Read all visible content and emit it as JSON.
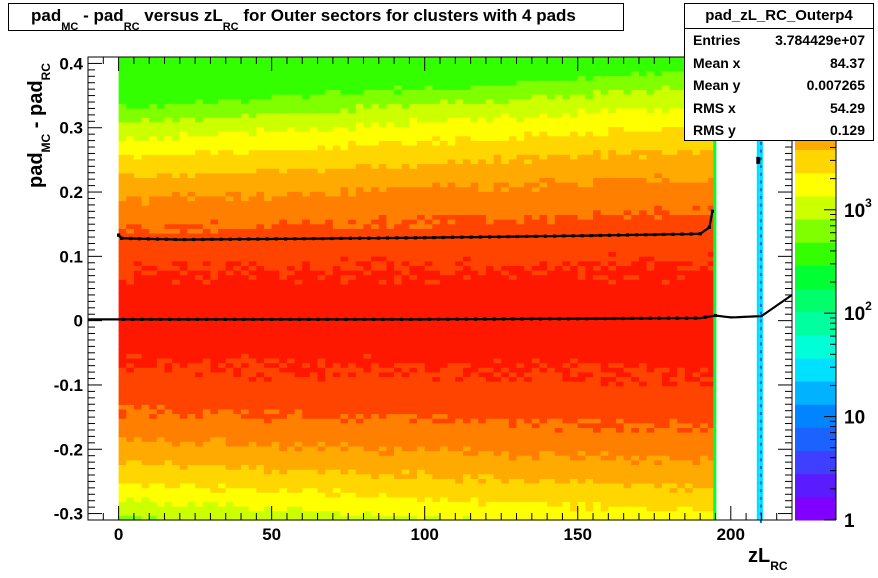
{
  "title": {
    "p1": "pad",
    "s1": "MC",
    "p2": " - pad",
    "s2": "RC",
    "p3": " versus zL",
    "s3": "RC",
    "p4": " for Outer sectors for clusters with 4 pads"
  },
  "stats": {
    "name": "pad_zL_RC_Outerp4",
    "rows": [
      {
        "label": "Entries",
        "value": "3.784429e+07"
      },
      {
        "label": "Mean x",
        "value": "84.37"
      },
      {
        "label": "Mean y",
        "value": "0.007265"
      },
      {
        "label": "RMS x",
        "value": "54.29"
      },
      {
        "label": "RMS y",
        "value": "0.129"
      }
    ]
  },
  "axis_labels": {
    "x_main": "zL",
    "x_sub": "RC",
    "y_main": "pad",
    "y_sub1": "MC",
    "y_mid": " - pad",
    "y_sub2": "RC"
  },
  "colors": {
    "levels": [
      "#7f00ff",
      "#5a1cff",
      "#3f3fff",
      "#1c62ff",
      "#0084ff",
      "#00b2ff",
      "#00e0ff",
      "#00ffd6",
      "#00ffa0",
      "#00ff6a",
      "#00ff33",
      "#33ff00",
      "#7fff00",
      "#ccff00",
      "#ffff00",
      "#ffd600",
      "#ffaa00",
      "#ff7f00",
      "#ff4400",
      "#ff1800"
    ]
  },
  "chart_data": {
    "type": "heatmap",
    "xlim": [
      -10,
      220
    ],
    "ylim": [
      -0.31,
      0.41
    ],
    "x_ticks": [
      0,
      50,
      100,
      150,
      200
    ],
    "y_ticks": [
      -0.3,
      -0.2,
      -0.1,
      0,
      0.1,
      0.2,
      0.3,
      0.4
    ],
    "y_tick_labels": [
      "-0.3",
      "-0.2",
      "-0.1",
      "0",
      "0.1",
      "0.2",
      "0.3",
      "0.4"
    ],
    "z_scale": "log",
    "z_ticks": [
      1,
      10,
      100,
      1000
    ],
    "z_tick_labels": [
      {
        "base": "1",
        "exp": ""
      },
      {
        "base": "10",
        "exp": ""
      },
      {
        "base": "10",
        "exp": "2"
      },
      {
        "base": "10",
        "exp": "3"
      }
    ],
    "filled_x_range": [
      0,
      195
    ],
    "sparse_columns": [
      209,
      210
    ],
    "mean_profile": {
      "x": [
        -10,
        0,
        50,
        100,
        150,
        190,
        195,
        200,
        210,
        220
      ],
      "y": [
        0.002,
        0.002,
        0.002,
        0.002,
        0.003,
        0.004,
        0.008,
        0.005,
        0.007,
        0.04
      ]
    },
    "rms_profile": {
      "x": [
        0,
        1,
        20,
        50,
        100,
        150,
        190,
        193,
        194,
        209
      ],
      "y": [
        0.133,
        0.128,
        0.126,
        0.127,
        0.129,
        0.132,
        0.135,
        0.145,
        0.17,
        0.25
      ]
    }
  }
}
